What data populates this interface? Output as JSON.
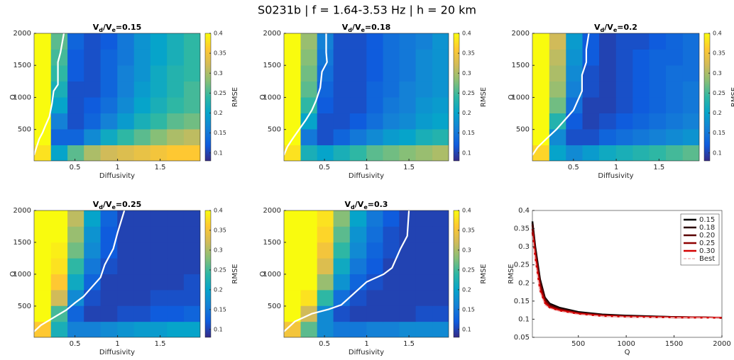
{
  "title": "S0231b | f = 1.64-3.53 Hz | h = 20 km",
  "chart_data": [
    {
      "type": "heatmap",
      "title_parts": [
        "V",
        "d",
        "/V",
        "e",
        "=0.15"
      ],
      "xlabel": "Diffusivity",
      "ylabel": "Q",
      "x": [
        0.12,
        0.315,
        0.51,
        0.7,
        0.9,
        1.095,
        1.29,
        1.48,
        1.68,
        1.875
      ],
      "y": [
        134,
        383,
        632,
        880,
        1129,
        1378,
        1627,
        1876
      ],
      "z": [
        [
          0.38,
          0.2,
          0.26,
          0.3,
          0.32,
          0.33,
          0.34,
          0.35,
          0.36,
          0.36
        ],
        [
          0.4,
          0.13,
          0.13,
          0.17,
          0.21,
          0.24,
          0.26,
          0.28,
          0.3,
          0.31
        ],
        [
          0.4,
          0.16,
          0.11,
          0.13,
          0.16,
          0.19,
          0.22,
          0.24,
          0.26,
          0.27
        ],
        [
          0.4,
          0.2,
          0.11,
          0.12,
          0.14,
          0.17,
          0.2,
          0.22,
          0.24,
          0.25
        ],
        [
          0.4,
          0.22,
          0.11,
          0.11,
          0.13,
          0.16,
          0.19,
          0.21,
          0.23,
          0.25
        ],
        [
          0.4,
          0.24,
          0.12,
          0.11,
          0.13,
          0.16,
          0.18,
          0.21,
          0.23,
          0.24
        ],
        [
          0.4,
          0.25,
          0.12,
          0.11,
          0.13,
          0.15,
          0.18,
          0.2,
          0.22,
          0.24
        ],
        [
          0.4,
          0.26,
          0.13,
          0.11,
          0.12,
          0.15,
          0.18,
          0.2,
          0.22,
          0.24
        ]
      ],
      "xlim": [
        0.02,
        1.97
      ],
      "ylim": [
        10,
        2000
      ],
      "xticks": [
        0.5,
        1,
        1.5
      ],
      "yticks": [
        500,
        1000,
        1500,
        2000
      ],
      "colorbar": {
        "label": "RMSE",
        "lim": [
          0.08,
          0.4
        ],
        "ticks": [
          0.1,
          0.15,
          0.2,
          0.25,
          0.3,
          0.35,
          0.4
        ]
      },
      "contour": {
        "color": "#ffffff",
        "x": [
          0.02,
          0.05,
          0.08,
          0.12,
          0.15,
          0.2,
          0.23,
          0.25,
          0.3,
          0.3,
          0.33,
          0.37
        ],
        "y": [
          100,
          230,
          350,
          450,
          550,
          700,
          900,
          1100,
          1200,
          1550,
          1700,
          2000
        ]
      }
    },
    {
      "type": "heatmap",
      "title_parts": [
        "V",
        "d",
        "/V",
        "e",
        "=0.18"
      ],
      "xlabel": "Diffusivity",
      "ylabel": "Q",
      "x": [
        0.12,
        0.315,
        0.51,
        0.7,
        0.9,
        1.095,
        1.29,
        1.48,
        1.68,
        1.875
      ],
      "y": [
        134,
        383,
        632,
        880,
        1129,
        1378,
        1627,
        1876
      ],
      "z": [
        [
          0.38,
          0.22,
          0.2,
          0.22,
          0.24,
          0.26,
          0.27,
          0.28,
          0.29,
          0.3
        ],
        [
          0.4,
          0.15,
          0.11,
          0.13,
          0.15,
          0.17,
          0.19,
          0.2,
          0.22,
          0.23
        ],
        [
          0.4,
          0.2,
          0.11,
          0.11,
          0.12,
          0.14,
          0.16,
          0.17,
          0.19,
          0.2
        ],
        [
          0.4,
          0.24,
          0.12,
          0.11,
          0.11,
          0.13,
          0.15,
          0.16,
          0.18,
          0.19
        ],
        [
          0.4,
          0.26,
          0.13,
          0.11,
          0.11,
          0.13,
          0.14,
          0.16,
          0.17,
          0.18
        ],
        [
          0.4,
          0.27,
          0.14,
          0.11,
          0.11,
          0.12,
          0.14,
          0.15,
          0.17,
          0.18
        ],
        [
          0.4,
          0.28,
          0.15,
          0.11,
          0.11,
          0.12,
          0.14,
          0.15,
          0.17,
          0.18
        ],
        [
          0.4,
          0.29,
          0.16,
          0.11,
          0.11,
          0.12,
          0.14,
          0.15,
          0.16,
          0.18
        ]
      ],
      "xlim": [
        0.02,
        1.97
      ],
      "ylim": [
        10,
        2000
      ],
      "xticks": [
        0.5,
        1,
        1.5
      ],
      "yticks": [
        500,
        1000,
        1500,
        2000
      ],
      "colorbar": {
        "label": "RMSE",
        "lim": [
          0.08,
          0.4
        ],
        "ticks": [
          0.1,
          0.15,
          0.2,
          0.25,
          0.3,
          0.35,
          0.4
        ]
      },
      "contour": {
        "color": "#ffffff",
        "x": [
          0.02,
          0.06,
          0.12,
          0.2,
          0.28,
          0.35,
          0.4,
          0.45,
          0.47,
          0.53,
          0.52,
          0.52
        ],
        "y": [
          100,
          230,
          350,
          500,
          650,
          800,
          950,
          1150,
          1400,
          1550,
          1700,
          2000
        ]
      }
    },
    {
      "type": "heatmap",
      "title_parts": [
        "V",
        "d",
        "/V",
        "e",
        "=0.2"
      ],
      "xlabel": "Diffusivity",
      "ylabel": "Q",
      "x": [
        0.12,
        0.315,
        0.51,
        0.7,
        0.9,
        1.095,
        1.29,
        1.48,
        1.68,
        1.875
      ],
      "y": [
        134,
        383,
        632,
        880,
        1129,
        1378,
        1627,
        1876
      ],
      "z": [
        [
          0.37,
          0.2,
          0.17,
          0.19,
          0.21,
          0.22,
          0.23,
          0.24,
          0.25,
          0.26
        ],
        [
          0.4,
          0.17,
          0.11,
          0.11,
          0.13,
          0.14,
          0.15,
          0.16,
          0.17,
          0.18
        ],
        [
          0.4,
          0.23,
          0.12,
          0.1,
          0.11,
          0.12,
          0.13,
          0.14,
          0.15,
          0.16
        ],
        [
          0.4,
          0.27,
          0.14,
          0.1,
          0.1,
          0.11,
          0.12,
          0.13,
          0.14,
          0.15
        ],
        [
          0.4,
          0.29,
          0.16,
          0.11,
          0.1,
          0.11,
          0.12,
          0.13,
          0.14,
          0.15
        ],
        [
          0.4,
          0.3,
          0.17,
          0.11,
          0.1,
          0.11,
          0.12,
          0.13,
          0.14,
          0.14
        ],
        [
          0.4,
          0.31,
          0.18,
          0.12,
          0.1,
          0.11,
          0.12,
          0.13,
          0.13,
          0.14
        ],
        [
          0.4,
          0.32,
          0.19,
          0.12,
          0.1,
          0.11,
          0.11,
          0.12,
          0.13,
          0.14
        ]
      ],
      "xlim": [
        0.02,
        1.97
      ],
      "ylim": [
        10,
        2000
      ],
      "xticks": [
        0.5,
        1,
        1.5
      ],
      "yticks": [
        500,
        1000,
        1500,
        2000
      ],
      "colorbar": {
        "label": "RMSE",
        "lim": [
          0.08,
          0.4
        ],
        "ticks": [
          0.1,
          0.15,
          0.2,
          0.25,
          0.3,
          0.35,
          0.4
        ]
      },
      "contour": {
        "color": "#ffffff",
        "x": [
          0.02,
          0.08,
          0.18,
          0.3,
          0.4,
          0.5,
          0.55,
          0.6,
          0.6,
          0.65,
          0.65,
          0.68
        ],
        "y": [
          100,
          220,
          350,
          500,
          650,
          800,
          950,
          1100,
          1350,
          1550,
          1750,
          2000
        ]
      }
    },
    {
      "type": "heatmap",
      "title_parts": [
        "V",
        "d",
        "/V",
        "e",
        "=0.25"
      ],
      "xlabel": "Diffusivity",
      "ylabel": "Q",
      "x": [
        0.12,
        0.315,
        0.51,
        0.7,
        0.9,
        1.095,
        1.29,
        1.48,
        1.68,
        1.875
      ],
      "y": [
        134,
        383,
        632,
        880,
        1129,
        1378,
        1627,
        1876
      ],
      "z": [
        [
          0.36,
          0.22,
          0.16,
          0.16,
          0.17,
          0.18,
          0.19,
          0.19,
          0.2,
          0.2
        ],
        [
          0.4,
          0.25,
          0.13,
          0.1,
          0.1,
          0.11,
          0.11,
          0.12,
          0.12,
          0.13
        ],
        [
          0.4,
          0.32,
          0.17,
          0.11,
          0.1,
          0.1,
          0.1,
          0.11,
          0.11,
          0.11
        ],
        [
          0.4,
          0.36,
          0.21,
          0.13,
          0.1,
          0.1,
          0.1,
          0.1,
          0.1,
          0.11
        ],
        [
          0.4,
          0.38,
          0.24,
          0.15,
          0.11,
          0.1,
          0.1,
          0.1,
          0.1,
          0.1
        ],
        [
          0.4,
          0.39,
          0.27,
          0.17,
          0.12,
          0.1,
          0.1,
          0.1,
          0.1,
          0.1
        ],
        [
          0.4,
          0.4,
          0.29,
          0.18,
          0.12,
          0.1,
          0.1,
          0.1,
          0.1,
          0.1
        ],
        [
          0.4,
          0.4,
          0.31,
          0.2,
          0.13,
          0.1,
          0.1,
          0.1,
          0.1,
          0.1
        ]
      ],
      "xlim": [
        0.02,
        1.97
      ],
      "ylim": [
        10,
        2000
      ],
      "xticks": [
        0.5,
        1,
        1.5
      ],
      "yticks": [
        500,
        1000,
        1500,
        2000
      ],
      "colorbar": {
        "label": "RMSE",
        "lim": [
          0.08,
          0.4
        ],
        "ticks": [
          0.1,
          0.15,
          0.2,
          0.25,
          0.3,
          0.35,
          0.4
        ]
      },
      "contour": {
        "color": "#ffffff",
        "x": [
          0.02,
          0.1,
          0.25,
          0.4,
          0.5,
          0.6,
          0.7,
          0.8,
          0.85,
          0.95,
          1.0,
          1.08
        ],
        "y": [
          100,
          200,
          320,
          440,
          550,
          650,
          800,
          950,
          1150,
          1400,
          1650,
          2000
        ]
      }
    },
    {
      "type": "heatmap",
      "title_parts": [
        "V",
        "d",
        "/V",
        "e",
        "=0.3"
      ],
      "xlabel": "Diffusivity",
      "ylabel": "Q",
      "x": [
        0.12,
        0.315,
        0.51,
        0.7,
        0.9,
        1.095,
        1.29,
        1.48,
        1.68,
        1.875
      ],
      "y": [
        134,
        383,
        632,
        880,
        1129,
        1378,
        1627,
        1876
      ],
      "z": [
        [
          0.35,
          0.26,
          0.17,
          0.15,
          0.15,
          0.16,
          0.16,
          0.17,
          0.17,
          0.17
        ],
        [
          0.4,
          0.32,
          0.17,
          0.11,
          0.1,
          0.1,
          0.1,
          0.1,
          0.11,
          0.11
        ],
        [
          0.4,
          0.38,
          0.24,
          0.14,
          0.11,
          0.1,
          0.1,
          0.1,
          0.1,
          0.1
        ],
        [
          0.4,
          0.4,
          0.29,
          0.18,
          0.13,
          0.11,
          0.1,
          0.1,
          0.1,
          0.1
        ],
        [
          0.4,
          0.4,
          0.33,
          0.21,
          0.15,
          0.12,
          0.1,
          0.1,
          0.1,
          0.1
        ],
        [
          0.4,
          0.4,
          0.35,
          0.24,
          0.17,
          0.13,
          0.11,
          0.1,
          0.1,
          0.1
        ],
        [
          0.4,
          0.4,
          0.37,
          0.26,
          0.18,
          0.14,
          0.11,
          0.1,
          0.1,
          0.1
        ],
        [
          0.4,
          0.4,
          0.38,
          0.28,
          0.2,
          0.15,
          0.12,
          0.1,
          0.1,
          0.1
        ]
      ],
      "xlim": [
        0.02,
        1.97
      ],
      "ylim": [
        10,
        2000
      ],
      "xticks": [
        0.5,
        1,
        1.5
      ],
      "yticks": [
        500,
        1000,
        1500,
        2000
      ],
      "colorbar": {
        "label": "RMSE",
        "lim": [
          0.08,
          0.4
        ],
        "ticks": [
          0.1,
          0.15,
          0.2,
          0.25,
          0.3,
          0.35,
          0.4
        ]
      },
      "contour": {
        "color": "#ffffff",
        "x": [
          0.02,
          0.15,
          0.35,
          0.55,
          0.7,
          0.85,
          1.0,
          1.2,
          1.3,
          1.4,
          1.48,
          1.5
        ],
        "y": [
          100,
          260,
          380,
          450,
          520,
          700,
          880,
          1000,
          1100,
          1400,
          1600,
          2000
        ]
      }
    },
    {
      "type": "line",
      "xlabel": "Q",
      "ylabel": "RMSE",
      "x": [
        20,
        50,
        100,
        150,
        200,
        300,
        500,
        750,
        1000,
        1500,
        2000
      ],
      "series": [
        {
          "name": "0.15",
          "color": "#000000",
          "values": [
            0.37,
            0.3,
            0.21,
            0.16,
            0.143,
            0.132,
            0.12,
            0.113,
            0.11,
            0.106,
            0.104
          ]
        },
        {
          "name": "0.18",
          "color": "#2a0000",
          "values": [
            0.365,
            0.295,
            0.205,
            0.158,
            0.14,
            0.13,
            0.118,
            0.112,
            0.109,
            0.106,
            0.104
          ]
        },
        {
          "name": "0.20",
          "color": "#5a0000",
          "values": [
            0.36,
            0.29,
            0.2,
            0.155,
            0.138,
            0.128,
            0.117,
            0.111,
            0.108,
            0.105,
            0.104
          ]
        },
        {
          "name": "0.25",
          "color": "#8f0000",
          "values": [
            0.35,
            0.28,
            0.19,
            0.15,
            0.135,
            0.126,
            0.116,
            0.11,
            0.107,
            0.105,
            0.104
          ]
        },
        {
          "name": "0.30",
          "color": "#d40000",
          "values": [
            0.34,
            0.27,
            0.18,
            0.145,
            0.132,
            0.124,
            0.115,
            0.109,
            0.107,
            0.105,
            0.104
          ]
        },
        {
          "name": "Best",
          "color": "#f2b8b8",
          "dashed": true,
          "values": [
            0.33,
            0.26,
            0.175,
            0.14,
            0.13,
            0.122,
            0.113,
            0.108,
            0.106,
            0.104,
            0.103
          ]
        }
      ],
      "xlim": [
        20,
        2000
      ],
      "ylim": [
        0.05,
        0.4
      ],
      "xticks": [
        500,
        1000,
        1500,
        2000
      ],
      "yticks": [
        0.05,
        0.1,
        0.15,
        0.2,
        0.25,
        0.3,
        0.35,
        0.4
      ],
      "legend": "upper right"
    }
  ]
}
